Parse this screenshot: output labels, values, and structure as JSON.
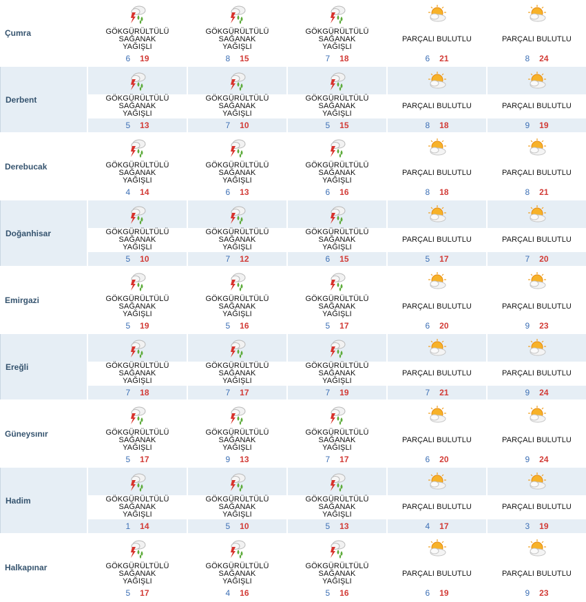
{
  "conditions": {
    "storm": "GÖKGÜRLTÜLÜ\nSAĞANAK YAĞIŞLI",
    "partly": "PARÇALI BULUTLU"
  },
  "icons": {
    "storm": "thunderstorm-rain-icon",
    "partly": "partly-cloudy-icon"
  },
  "colors": {
    "city": "#36546f",
    "min": "#3c6fb5",
    "max": "#d23b36",
    "band": "#e6eef5"
  },
  "rows": [
    {
      "city": "Çumra",
      "days": [
        {
          "cond": "storm",
          "cond_label": "GÖKGÜRÜLTÜLÜ SAĞANAK YAĞIŞLI",
          "min": "6",
          "max": "19"
        },
        {
          "cond": "storm",
          "cond_label": "GÖKGÜRÜLTÜLÜ SAĞANAK YAĞIŞLI",
          "min": "8",
          "max": "15"
        },
        {
          "cond": "storm",
          "cond_label": "GÖKGÜRÜLTÜLÜ SAĞANAK YAĞIŞLI",
          "min": "7",
          "max": "18"
        },
        {
          "cond": "partly",
          "cond_label": "PARÇALI BULUTLU",
          "min": "6",
          "max": "21"
        },
        {
          "cond": "partly",
          "cond_label": "PARÇALI BULUTLU",
          "min": "8",
          "max": "24"
        }
      ]
    },
    {
      "city": "Derbent",
      "days": [
        {
          "cond": "storm",
          "cond_label": "GÖKGÜRÜLTÜLÜ SAĞANAK YAĞIŞLI",
          "min": "5",
          "max": "13"
        },
        {
          "cond": "storm",
          "cond_label": "GÖKGÜRÜLTÜLÜ SAĞANAK YAĞIŞLI",
          "min": "7",
          "max": "10"
        },
        {
          "cond": "storm",
          "cond_label": "GÖKGÜRÜLTÜLÜ SAĞANAK YAĞIŞLI",
          "min": "5",
          "max": "15"
        },
        {
          "cond": "partly",
          "cond_label": "PARÇALI BULUTLU",
          "min": "8",
          "max": "18"
        },
        {
          "cond": "partly",
          "cond_label": "PARÇALI BULUTLU",
          "min": "9",
          "max": "19"
        }
      ]
    },
    {
      "city": "Derebucak",
      "days": [
        {
          "cond": "storm",
          "cond_label": "GÖKGÜRÜLTÜLÜ SAĞANAK YAĞIŞLI",
          "min": "4",
          "max": "14"
        },
        {
          "cond": "storm",
          "cond_label": "GÖKGÜRÜLTÜLÜ SAĞANAK YAĞIŞLI",
          "min": "6",
          "max": "13"
        },
        {
          "cond": "storm",
          "cond_label": "GÖKGÜRÜLTÜLÜ SAĞANAK YAĞIŞLI",
          "min": "6",
          "max": "16"
        },
        {
          "cond": "partly",
          "cond_label": "PARÇALI BULUTLU",
          "min": "8",
          "max": "18"
        },
        {
          "cond": "partly",
          "cond_label": "PARÇALI BULUTLU",
          "min": "8",
          "max": "21"
        }
      ]
    },
    {
      "city": "Doğanhisar",
      "days": [
        {
          "cond": "storm",
          "cond_label": "GÖKGÜRÜLTÜLÜ SAĞANAK YAĞIŞLI",
          "min": "5",
          "max": "10"
        },
        {
          "cond": "storm",
          "cond_label": "GÖKGÜRÜLTÜLÜ SAĞANAK YAĞIŞLI",
          "min": "7",
          "max": "12"
        },
        {
          "cond": "storm",
          "cond_label": "GÖKGÜRÜLTÜLÜ SAĞANAK YAĞIŞLI",
          "min": "6",
          "max": "15"
        },
        {
          "cond": "partly",
          "cond_label": "PARÇALI BULUTLU",
          "min": "5",
          "max": "17"
        },
        {
          "cond": "partly",
          "cond_label": "PARÇALI BULUTLU",
          "min": "7",
          "max": "20"
        }
      ]
    },
    {
      "city": "Emirgazi",
      "days": [
        {
          "cond": "storm",
          "cond_label": "GÖKGÜRÜLTÜLÜ SAĞANAK YAĞIŞLI",
          "min": "5",
          "max": "19"
        },
        {
          "cond": "storm",
          "cond_label": "GÖKGÜRÜLTÜLÜ SAĞANAK YAĞIŞLI",
          "min": "5",
          "max": "16"
        },
        {
          "cond": "storm",
          "cond_label": "GÖKGÜRÜLTÜLÜ SAĞANAK YAĞIŞLI",
          "min": "5",
          "max": "17"
        },
        {
          "cond": "partly",
          "cond_label": "PARÇALI BULUTLU",
          "min": "6",
          "max": "20"
        },
        {
          "cond": "partly",
          "cond_label": "PARÇALI BULUTLU",
          "min": "9",
          "max": "23"
        }
      ]
    },
    {
      "city": "Ereğli",
      "days": [
        {
          "cond": "storm",
          "cond_label": "GÖKGÜRÜLTÜLÜ SAĞANAK YAĞIŞLI",
          "min": "7",
          "max": "18"
        },
        {
          "cond": "storm",
          "cond_label": "GÖKGÜRÜLTÜLÜ SAĞANAK YAĞIŞLI",
          "min": "7",
          "max": "17"
        },
        {
          "cond": "storm",
          "cond_label": "GÖKGÜRÜLTÜLÜ SAĞANAK YAĞIŞLI",
          "min": "7",
          "max": "19"
        },
        {
          "cond": "partly",
          "cond_label": "PARÇALI BULUTLU",
          "min": "7",
          "max": "21"
        },
        {
          "cond": "partly",
          "cond_label": "PARÇALI BULUTLU",
          "min": "9",
          "max": "24"
        }
      ]
    },
    {
      "city": "Güneysınır",
      "days": [
        {
          "cond": "storm",
          "cond_label": "GÖKGÜRÜLTÜLÜ SAĞANAK YAĞIŞLI",
          "min": "5",
          "max": "17"
        },
        {
          "cond": "storm",
          "cond_label": "GÖKGÜRÜLTÜLÜ SAĞANAK YAĞIŞLI",
          "min": "9",
          "max": "13"
        },
        {
          "cond": "storm",
          "cond_label": "GÖKGÜRÜLTÜLÜ SAĞANAK YAĞIŞLI",
          "min": "7",
          "max": "17"
        },
        {
          "cond": "partly",
          "cond_label": "PARÇALI BULUTLU",
          "min": "6",
          "max": "20"
        },
        {
          "cond": "partly",
          "cond_label": "PARÇALI BULUTLU",
          "min": "9",
          "max": "24"
        }
      ]
    },
    {
      "city": "Hadim",
      "days": [
        {
          "cond": "storm",
          "cond_label": "GÖKGÜRÜLTÜLÜ SAĞANAK YAĞIŞLI",
          "min": "1",
          "max": "14"
        },
        {
          "cond": "storm",
          "cond_label": "GÖKGÜRÜLTÜLÜ SAĞANAK YAĞIŞLI",
          "min": "5",
          "max": "10"
        },
        {
          "cond": "storm",
          "cond_label": "GÖKGÜRÜLTÜLÜ SAĞANAK YAĞIŞLI",
          "min": "5",
          "max": "13"
        },
        {
          "cond": "partly",
          "cond_label": "PARÇALI BULUTLU",
          "min": "4",
          "max": "17"
        },
        {
          "cond": "partly",
          "cond_label": "PARÇALI BULUTLU",
          "min": "3",
          "max": "19"
        }
      ]
    },
    {
      "city": "Halkapınar",
      "days": [
        {
          "cond": "storm",
          "cond_label": "GÖKGÜRÜLTÜLÜ SAĞANAK YAĞIŞLI",
          "min": "5",
          "max": "17"
        },
        {
          "cond": "storm",
          "cond_label": "GÖKGÜRÜLTÜLÜ SAĞANAK YAĞIŞLI",
          "min": "4",
          "max": "16"
        },
        {
          "cond": "storm",
          "cond_label": "GÖKGÜRÜLTÜLÜ SAĞANAK YAĞIŞLI",
          "min": "5",
          "max": "16"
        },
        {
          "cond": "partly",
          "cond_label": "PARÇALI BULUTLU",
          "min": "6",
          "max": "19"
        },
        {
          "cond": "partly",
          "cond_label": "PARÇALI BULUTLU",
          "min": "9",
          "max": "23"
        }
      ]
    }
  ]
}
